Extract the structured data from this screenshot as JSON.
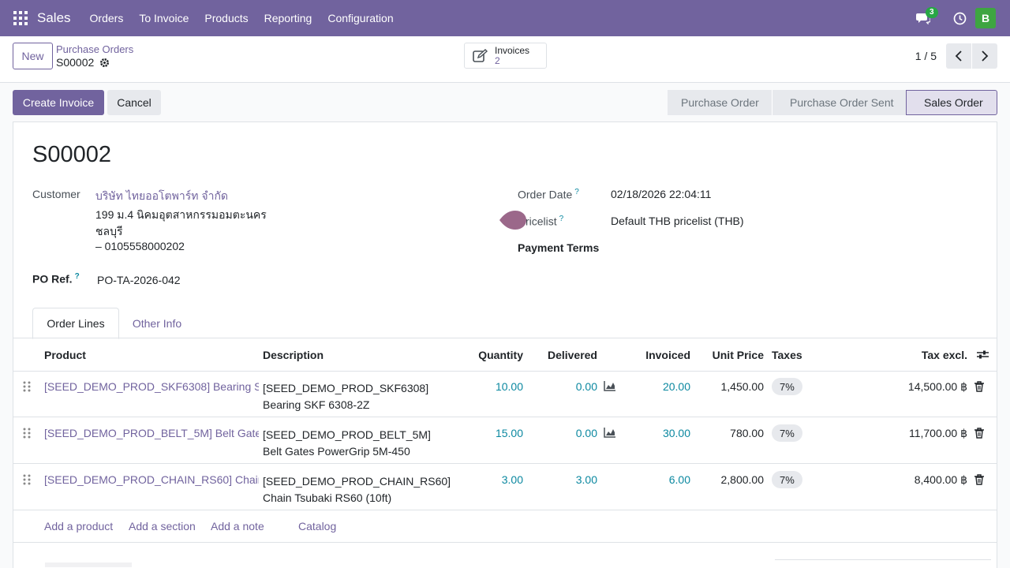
{
  "navbar": {
    "brand": "Sales",
    "menu": [
      "Orders",
      "To Invoice",
      "Products",
      "Reporting",
      "Configuration"
    ],
    "chat_count": "3",
    "user_initial": "B",
    "accent_color": "#71639e"
  },
  "control": {
    "new_label": "New",
    "breadcrumb": "Purchase Orders",
    "record": "S00002",
    "smart_button": {
      "label": "Invoices",
      "count": "2"
    },
    "pager": "1 / 5"
  },
  "statusbar": {
    "create_invoice": "Create Invoice",
    "cancel": "Cancel",
    "stages": [
      "Purchase Order",
      "Purchase Order Sent",
      "Sales Order"
    ],
    "active_stage": "Sales Order"
  },
  "form": {
    "title": "S00002",
    "customer_label": "Customer",
    "customer_name": "บริษัท ไทยออโตพาร์ท จำกัด",
    "customer_address_1": "199 ม.4 นิคมอุตสาหกรรมอมตะนคร",
    "customer_address_2": "ชลบุรี",
    "customer_vat": "– 0105558000202",
    "po_ref_label": "PO Ref.",
    "po_ref_value": "PO-TA-2026-042",
    "order_date_label": "Order Date",
    "order_date_value": "02/18/2026 22:04:11",
    "pricelist_label": "ricelist",
    "pricelist_value": "Default THB pricelist (THB)",
    "payment_terms_label": "Payment Terms",
    "help_mark": "?"
  },
  "tabs": [
    "Order Lines",
    "Other Info"
  ],
  "table": {
    "headers": [
      "Product",
      "Description",
      "Quantity",
      "Delivered",
      "Invoiced",
      "Unit Price",
      "Taxes",
      "Tax excl."
    ],
    "rows": [
      {
        "product": "[SEED_DEMO_PROD_SKF6308] Bearing S",
        "desc_1": "[SEED_DEMO_PROD_SKF6308]",
        "desc_2": "Bearing SKF 6308-2Z",
        "qty": "10.00",
        "delivered": "0.00",
        "invoiced": "20.00",
        "price": "1,450.00",
        "tax": "7%",
        "subtotal": "14,500.00 ฿"
      },
      {
        "product": "[SEED_DEMO_PROD_BELT_5M] Belt Gates",
        "desc_1": "[SEED_DEMO_PROD_BELT_5M]",
        "desc_2": "Belt Gates PowerGrip 5M-450",
        "qty": "15.00",
        "delivered": "0.00",
        "invoiced": "30.00",
        "price": "780.00",
        "tax": "7%",
        "subtotal": "11,700.00 ฿"
      },
      {
        "product": "[SEED_DEMO_PROD_CHAIN_RS60] Chain",
        "desc_1": "[SEED_DEMO_PROD_CHAIN_RS60]",
        "desc_2": "Chain Tsubaki RS60 (10ft)",
        "qty": "3.00",
        "delivered": "3.00",
        "invoiced": "6.00",
        "price": "2,800.00",
        "tax": "7%",
        "subtotal": "8,400.00 ฿"
      }
    ],
    "add_links": [
      "Add a product",
      "Add a section",
      "Add a note",
      "Catalog"
    ]
  }
}
